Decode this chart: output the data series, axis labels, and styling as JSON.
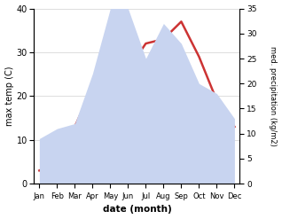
{
  "months": [
    "Jan",
    "Feb",
    "Mar",
    "Apr",
    "May",
    "Jun",
    "Jul",
    "Aug",
    "Sep",
    "Oct",
    "Nov",
    "Dec"
  ],
  "temperature": [
    3,
    5,
    13,
    22,
    26,
    26,
    32,
    33,
    37,
    29,
    19,
    13
  ],
  "precipitation": [
    9,
    11,
    12,
    22,
    35,
    35,
    25,
    32,
    28,
    20,
    18,
    13
  ],
  "temp_color": "#cc3333",
  "precip_fill_color": "#c8d4f0",
  "temp_ylim": [
    0,
    40
  ],
  "precip_ylim": [
    0,
    35
  ],
  "xlabel": "date (month)",
  "ylabel_left": "max temp (C)",
  "ylabel_right": "med. precipitation (kg/m2)",
  "bg_color": "#ffffff",
  "grid_color": "#d0d0d0",
  "temp_yticks": [
    0,
    10,
    20,
    30,
    40
  ],
  "precip_yticks": [
    0,
    5,
    10,
    15,
    20,
    25,
    30,
    35
  ]
}
